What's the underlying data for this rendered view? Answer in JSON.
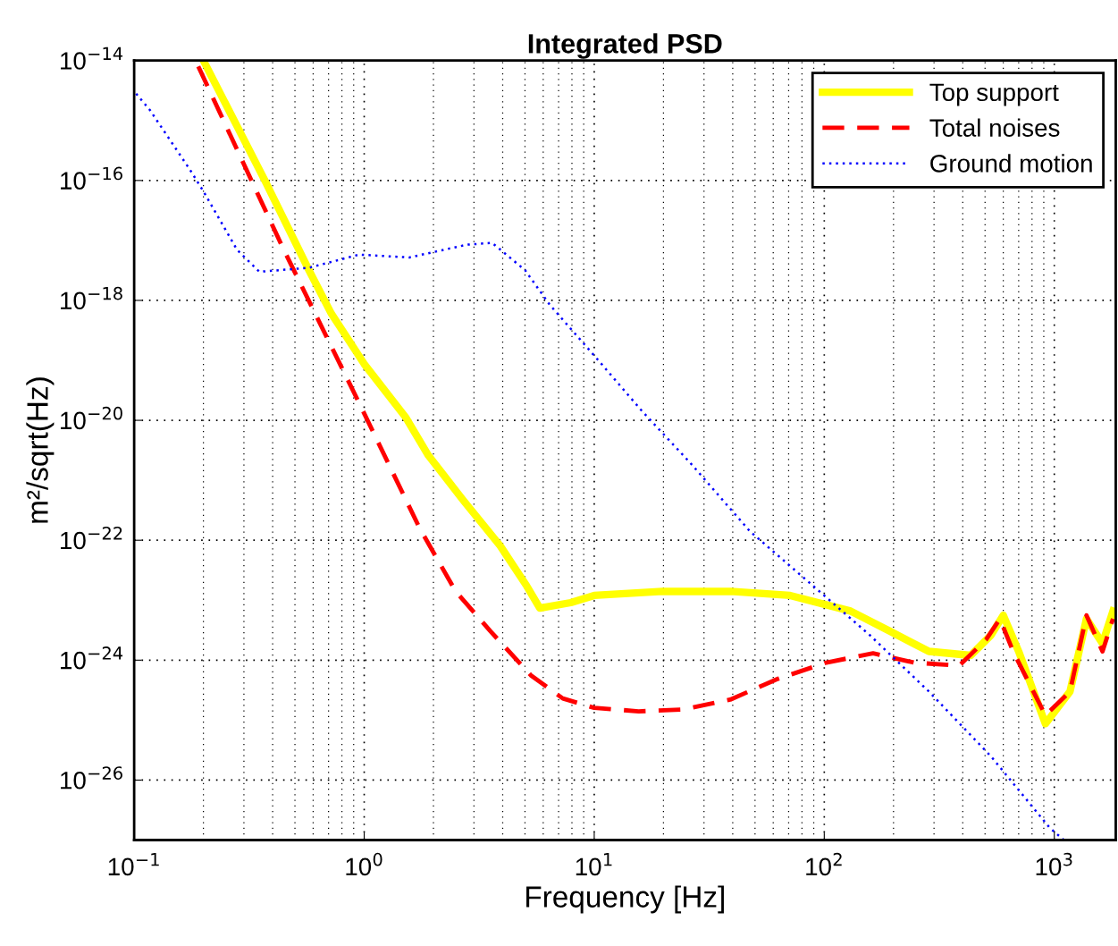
{
  "chart_data": {
    "type": "line",
    "title": "Integrated PSD",
    "xlabel": "Frequency [Hz]",
    "ylabel": "m²/sqrt(Hz)",
    "log": "xy",
    "grid": true,
    "legend": "top right",
    "xlim": [
      0.1,
      1850
    ],
    "ylim": [
      1e-27,
      1e-14
    ],
    "xticks": [
      {
        "value": 0.1,
        "label": "10$^{−1}$"
      },
      {
        "value": 1,
        "label": "10$^{0}$"
      },
      {
        "value": 10,
        "label": "10$^{1}$"
      },
      {
        "value": 100,
        "label": "10$^{2}$"
      },
      {
        "value": 1000,
        "label": "10$^{3}$"
      }
    ],
    "yticks": [
      {
        "value": 1e-26,
        "label": "10$^{−26}$"
      },
      {
        "value": 1e-24,
        "label": "10$^{−24}$"
      },
      {
        "value": 1e-22,
        "label": "10$^{−22}$"
      },
      {
        "value": 1e-20,
        "label": "10$^{−20}$"
      },
      {
        "value": 1e-18,
        "label": "10$^{−18}$"
      },
      {
        "value": 1e-16,
        "label": "10$^{−16}$"
      },
      {
        "value": 1e-14,
        "label": "10$^{−14}$"
      }
    ],
    "series": [
      {
        "name": "Top support",
        "color": "#ffff00",
        "line_style": "solid",
        "x": [
          0.2,
          0.37,
          0.575,
          0.72,
          1.0,
          1.52,
          1.9,
          2.7,
          3.9,
          5.1,
          5.8,
          7.9,
          10,
          19.8,
          39.2,
          71,
          130,
          194,
          285,
          433,
          530,
          600,
          700,
          915,
          1170,
          1380,
          1620,
          1800
        ],
        "values": [
          1e-14,
          1e-16,
          3.2e-18,
          6e-19,
          8.7e-20,
          1.1e-20,
          2.6e-21,
          4.6e-22,
          8.1e-23,
          1.7e-23,
          7.4e-24,
          9.1e-24,
          1.2e-23,
          1.4e-23,
          1.4e-23,
          1.2e-23,
          6.6e-24,
          3e-24,
          1.4e-24,
          1.2e-24,
          2.6e-24,
          5.6e-24,
          1.4e-24,
          8.7e-26,
          3e-25,
          4.9e-24,
          1.9e-24,
          6.6e-24
        ]
      },
      {
        "name": "Total noises",
        "color": "#ff0000",
        "line_style": "dashed",
        "x": [
          0.19,
          0.447,
          0.96,
          1.74,
          2.5,
          3.55,
          5.3,
          7.3,
          10,
          15.6,
          24.1,
          39,
          63,
          102,
          163,
          246,
          386,
          505,
          580,
          662,
          915,
          1170,
          1380,
          1620,
          1800
        ],
        "values": [
          8e-15,
          7e-18,
          1.8e-20,
          1.6e-22,
          1.4e-23,
          3e-24,
          5.6e-25,
          2.3e-25,
          1.6e-25,
          1.4e-25,
          1.5e-25,
          2.2e-25,
          4.9e-25,
          9.1e-25,
          1.3e-24,
          9.1e-25,
          8.1e-25,
          2.2e-24,
          4.9e-24,
          1.4e-24,
          1.2e-25,
          3e-25,
          5.6e-24,
          1.4e-24,
          4.9e-24
        ]
      },
      {
        "name": "Ground motion",
        "color": "#0000ff",
        "line_style": "dotted",
        "x": [
          0.102,
          0.117,
          0.175,
          0.2,
          0.28,
          0.35,
          0.575,
          0.95,
          1.57,
          2.8,
          3.6,
          5.0,
          6.4,
          10.2,
          16.2,
          26,
          47.6,
          87,
          158,
          285,
          530,
          955,
          1100
        ],
        "values": [
          2.8e-15,
          1.5e-15,
          1.5e-16,
          6.6e-17,
          7e-18,
          3e-18,
          3.5e-18,
          5.8e-18,
          5.2e-18,
          8.5e-18,
          9.1e-18,
          3.2e-18,
          8.5e-19,
          1.1e-19,
          1.4e-20,
          2e-21,
          1.4e-22,
          1.9e-23,
          2.6e-24,
          3e-25,
          2.5e-26,
          1.6e-27,
          1e-27
        ]
      }
    ]
  }
}
